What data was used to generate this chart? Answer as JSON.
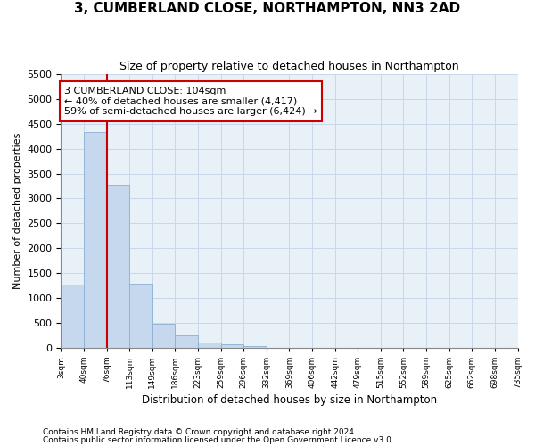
{
  "title": "3, CUMBERLAND CLOSE, NORTHAMPTON, NN3 2AD",
  "subtitle": "Size of property relative to detached houses in Northampton",
  "xlabel": "Distribution of detached houses by size in Northampton",
  "ylabel": "Number of detached properties",
  "footnote1": "Contains HM Land Registry data © Crown copyright and database right 2024.",
  "footnote2": "Contains public sector information licensed under the Open Government Licence v3.0.",
  "annotation_line1": "3 CUMBERLAND CLOSE: 104sqm",
  "annotation_line2": "← 40% of detached houses are smaller (4,417)",
  "annotation_line3": "59% of semi-detached houses are larger (6,424) →",
  "bar_color": "#c5d8ee",
  "bar_edge_color": "#8aafd4",
  "grid_color": "#c8d8ea",
  "background_color": "#e8f0f8",
  "red_line_color": "#cc0000",
  "annotation_box_edgecolor": "#cc0000",
  "annotation_box_facecolor": "#ffffff",
  "ylim": [
    0,
    5500
  ],
  "yticks": [
    0,
    500,
    1000,
    1500,
    2000,
    2500,
    3000,
    3500,
    4000,
    4500,
    5000,
    5500
  ],
  "tick_labels": [
    "3sqm",
    "40sqm",
    "76sqm",
    "113sqm",
    "149sqm",
    "186sqm",
    "223sqm",
    "259sqm",
    "296sqm",
    "332sqm",
    "369sqm",
    "406sqm",
    "442sqm",
    "479sqm",
    "515sqm",
    "552sqm",
    "589sqm",
    "625sqm",
    "662sqm",
    "698sqm",
    "735sqm"
  ],
  "bar_values": [
    1270,
    4330,
    3280,
    1280,
    480,
    240,
    100,
    60,
    30,
    0,
    0,
    0,
    0,
    0,
    0,
    0,
    0,
    0,
    0,
    0
  ],
  "red_line_x": 2.0,
  "figsize": [
    6.0,
    5.0
  ],
  "dpi": 100
}
